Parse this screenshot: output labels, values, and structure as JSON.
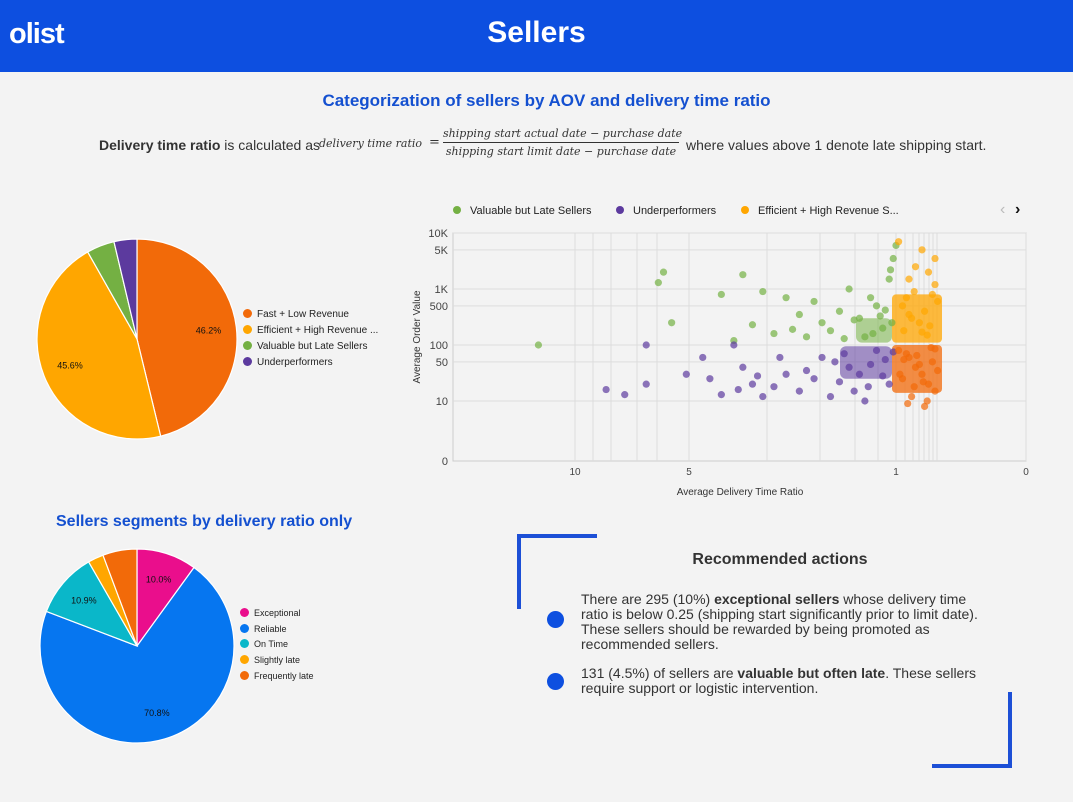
{
  "header": {
    "logo": "olist",
    "title": "Sellers"
  },
  "section_title": "Categorization of sellers by AOV and delivery time ratio",
  "formula": {
    "lead_bold": "Delivery time ratio",
    "lead_rest": " is calculated as",
    "lhs": "delivery time ratio",
    "eq": "=",
    "numerator": "shipping start actual date − purchase date",
    "denominator": "shipping start limit date − purchase date",
    "tail": "where values above 1 denote late shipping start."
  },
  "pie1": {
    "legend": [
      "Fast + Low Revenue",
      "Efficient + High Revenue ...",
      "Valuable but Late Sellers",
      "Underperformers"
    ],
    "colors": [
      "#f26a09",
      "#ffa600",
      "#74b043",
      "#5c3a9e"
    ]
  },
  "scatter": {
    "legend": [
      "Valuable but Late Sellers",
      "Underperformers",
      "Efficient + High Revenue S..."
    ],
    "colors": [
      "#74b043",
      "#5c3a9e",
      "#ffa600",
      "#f26a09"
    ],
    "nav_prev": "‹",
    "nav_next": "›",
    "xlabel": "Average Delivery Time Ratio",
    "ylabel": "Average Order Value",
    "x_ticks": [
      "10",
      "5",
      "1",
      "0"
    ],
    "y_ticks": [
      "10K",
      "5K",
      "1K",
      "500",
      "100",
      "50",
      "10",
      "0"
    ]
  },
  "seg_title": "Sellers segments by delivery ratio only",
  "pie2": {
    "legend": [
      "Exceptional",
      "Reliable",
      "On Time",
      "Slightly late",
      "Frequently late"
    ],
    "colors": [
      "#ea0e8c",
      "#0676f0",
      "#0ab7c9",
      "#ffa600",
      "#f26a09"
    ]
  },
  "recommended": {
    "title": "Recommended actions",
    "item1": {
      "pre": "There are 295 (10%) ",
      "bold": "exceptional sellers",
      "post": " whose delivery time ratio is below 0.25 (shipping start significantly prior to limit date). These sellers should be rewarded by being promoted as recommended sellers."
    },
    "item2": {
      "pre": "131 (4.5%) of sellers are ",
      "bold": "valuable but often late",
      "post": ". These sellers require support or logistic intervention."
    }
  },
  "chart_data": [
    {
      "type": "pie",
      "categories": [
        "Fast + Low Revenue",
        "Efficient + High Revenue ...",
        "Valuable but Late Sellers",
        "Underperformers"
      ],
      "values": [
        46.2,
        45.6,
        4.5,
        3.7
      ],
      "labels": [
        "46.2%",
        "45.6%",
        "",
        ""
      ]
    },
    {
      "type": "scatter",
      "xlabel": "Average Delivery Time Ratio",
      "ylabel": "Average Order Value",
      "x_reversed": true,
      "y_scale": "log",
      "series": [
        {
          "name": "Valuable but Late Sellers",
          "points": [
            [
              13,
              100
            ],
            [
              5,
              250
            ],
            [
              5.3,
              2000
            ],
            [
              5.5,
              1300
            ],
            [
              3.5,
              800
            ],
            [
              3,
              1800
            ],
            [
              2.6,
              900
            ],
            [
              2.2,
              700
            ],
            [
              2,
              350
            ],
            [
              1.8,
              600
            ],
            [
              1.5,
              400
            ],
            [
              1.4,
              1000
            ],
            [
              1.3,
              300
            ],
            [
              1.2,
              700
            ],
            [
              1.15,
              500
            ],
            [
              1.1,
              200
            ],
            [
              1.05,
              1500
            ],
            [
              1.02,
              3500
            ],
            [
              3.2,
              120
            ],
            [
              2.8,
              230
            ],
            [
              2.4,
              160
            ],
            [
              1.7,
              250
            ],
            [
              1.6,
              180
            ],
            [
              1.35,
              280
            ],
            [
              1.25,
              140
            ],
            [
              1.08,
              420
            ],
            [
              1.0,
              6000
            ],
            [
              1.04,
              2200
            ],
            [
              1.18,
              160
            ],
            [
              1.45,
              130
            ],
            [
              1.9,
              140
            ],
            [
              2.1,
              190
            ],
            [
              1.12,
              330
            ],
            [
              1.03,
              250
            ]
          ]
        },
        {
          "name": "Underperformers",
          "points": [
            [
              8,
              16
            ],
            [
              7,
              13
            ],
            [
              6,
              100
            ],
            [
              6,
              20
            ],
            [
              4.5,
              30
            ],
            [
              4,
              60
            ],
            [
              3.8,
              25
            ],
            [
              3.5,
              13
            ],
            [
              3.2,
              100
            ],
            [
              3,
              40
            ],
            [
              2.8,
              20
            ],
            [
              2.6,
              12
            ],
            [
              2.4,
              18
            ],
            [
              2.2,
              30
            ],
            [
              2,
              15
            ],
            [
              1.8,
              25
            ],
            [
              1.7,
              60
            ],
            [
              1.6,
              12
            ],
            [
              1.5,
              22
            ],
            [
              1.45,
              70
            ],
            [
              1.4,
              40
            ],
            [
              1.35,
              15
            ],
            [
              1.3,
              30
            ],
            [
              1.25,
              10
            ],
            [
              1.2,
              45
            ],
            [
              1.15,
              80
            ],
            [
              1.1,
              28
            ],
            [
              1.08,
              55
            ],
            [
              1.05,
              20
            ],
            [
              1.02,
              75
            ],
            [
              3.1,
              16
            ],
            [
              2.7,
              28
            ],
            [
              2.3,
              60
            ],
            [
              1.9,
              35
            ],
            [
              1.55,
              50
            ],
            [
              1.22,
              18
            ]
          ]
        },
        {
          "name": "Efficient + High Revenue S...",
          "points": [
            [
              0.98,
              7000
            ],
            [
              0.85,
              2500
            ],
            [
              0.9,
              1500
            ],
            [
              0.8,
              5000
            ],
            [
              0.75,
              2000
            ],
            [
              0.7,
              1200
            ],
            [
              0.72,
              800
            ],
            [
              0.95,
              500
            ],
            [
              0.88,
              300
            ],
            [
              0.78,
              400
            ],
            [
              0.82,
              250
            ],
            [
              0.92,
              700
            ],
            [
              0.68,
              600
            ],
            [
              0.7,
              3500
            ],
            [
              0.86,
              900
            ],
            [
              0.76,
              150
            ],
            [
              0.94,
              180
            ],
            [
              0.8,
              170
            ],
            [
              0.74,
              220
            ],
            [
              0.9,
              350
            ]
          ]
        },
        {
          "name": "Fast + Low Revenue",
          "points": [
            [
              0.98,
              80
            ],
            [
              0.9,
              60
            ],
            [
              0.85,
              40
            ],
            [
              0.8,
              30
            ],
            [
              0.75,
              20
            ],
            [
              0.7,
              15
            ],
            [
              0.72,
              50
            ],
            [
              0.95,
              25
            ],
            [
              0.88,
              12
            ],
            [
              0.78,
              8
            ],
            [
              0.82,
              45
            ],
            [
              0.92,
              70
            ],
            [
              0.68,
              35
            ],
            [
              0.76,
              10
            ],
            [
              0.86,
              18
            ],
            [
              0.94,
              55
            ],
            [
              0.73,
              90
            ],
            [
              0.84,
              65
            ],
            [
              0.79,
              22
            ],
            [
              0.91,
              9
            ],
            [
              0.7,
              85
            ],
            [
              0.97,
              30
            ]
          ]
        }
      ]
    },
    {
      "type": "pie",
      "categories": [
        "Exceptional",
        "Reliable",
        "On Time",
        "Slightly late",
        "Frequently late"
      ],
      "values": [
        10.0,
        70.8,
        10.9,
        2.6,
        5.7
      ],
      "labels": [
        "10.0%",
        "70.8%",
        "10.9%",
        "",
        ""
      ]
    }
  ]
}
